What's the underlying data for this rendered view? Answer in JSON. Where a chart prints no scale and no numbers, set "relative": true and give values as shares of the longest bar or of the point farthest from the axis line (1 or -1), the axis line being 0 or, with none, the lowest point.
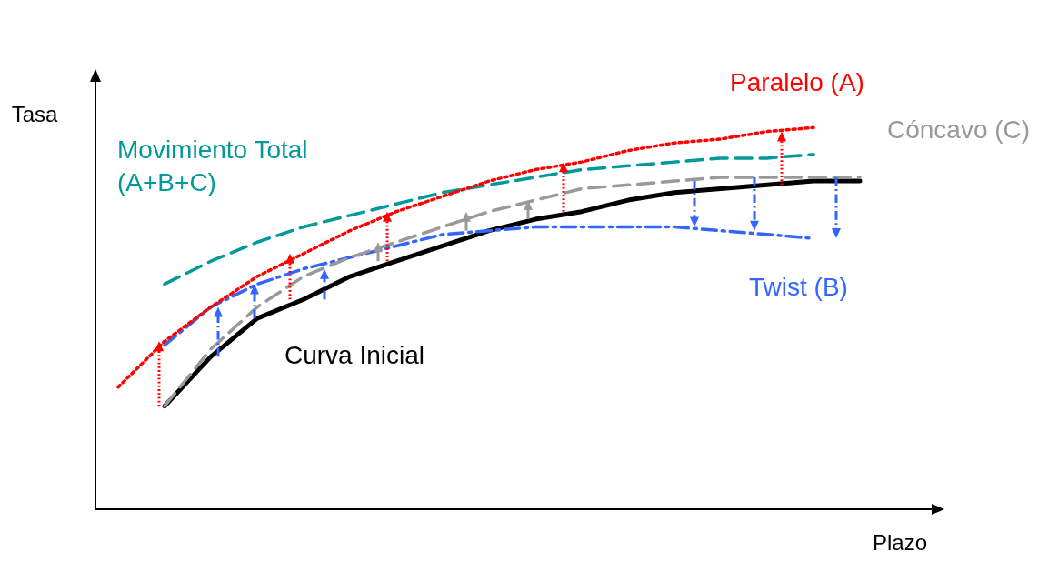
{
  "chart_data": {
    "type": "line",
    "relative": true,
    "xlabel": "Plazo",
    "ylabel": "Tasa",
    "grid": false,
    "legend": false,
    "marker": "none",
    "categories": [
      null,
      null,
      null,
      null,
      null,
      null,
      null,
      null,
      null,
      null,
      null,
      null,
      null,
      null,
      null,
      null,
      null
    ],
    "series": [
      {
        "name": "Paralelo (A)",
        "color": "#ff0000",
        "line_style": "dotted",
        "values": [
          0.32,
          0.44,
          0.53,
          0.61,
          0.67,
          0.73,
          0.78,
          0.82,
          0.86,
          0.89,
          0.91,
          0.94,
          0.96,
          0.97,
          0.99,
          1.0,
          null
        ]
      },
      {
        "name": "Cóncavo (C)",
        "color": "#999999",
        "line_style": "dashed",
        "values": [
          null,
          0.27,
          0.42,
          0.53,
          0.61,
          0.66,
          0.7,
          0.74,
          0.78,
          0.81,
          0.84,
          0.85,
          0.86,
          0.87,
          0.87,
          0.87,
          0.87
        ]
      },
      {
        "name": "Movimiento Total (A+B+C)",
        "color": "#009999",
        "line_style": "dashed",
        "values": [
          null,
          0.59,
          0.65,
          0.7,
          0.74,
          0.77,
          0.8,
          0.83,
          0.85,
          0.87,
          0.89,
          0.9,
          0.91,
          0.92,
          0.92,
          0.93,
          null
        ]
      },
      {
        "name": "Twist (B)",
        "color": "#3366ff",
        "line_style": "dashdot",
        "values": [
          null,
          0.43,
          0.53,
          0.59,
          0.63,
          0.66,
          0.69,
          0.72,
          0.73,
          0.74,
          0.74,
          0.74,
          0.74,
          0.73,
          0.72,
          0.71,
          null
        ]
      },
      {
        "name": "Curva Inicial",
        "color": "#000000",
        "line_style": "solid",
        "values": [
          null,
          0.27,
          0.4,
          0.5,
          0.55,
          0.61,
          0.65,
          0.69,
          0.73,
          0.76,
          0.78,
          0.81,
          0.83,
          0.84,
          0.85,
          0.86,
          0.86
        ]
      }
    ]
  }
}
